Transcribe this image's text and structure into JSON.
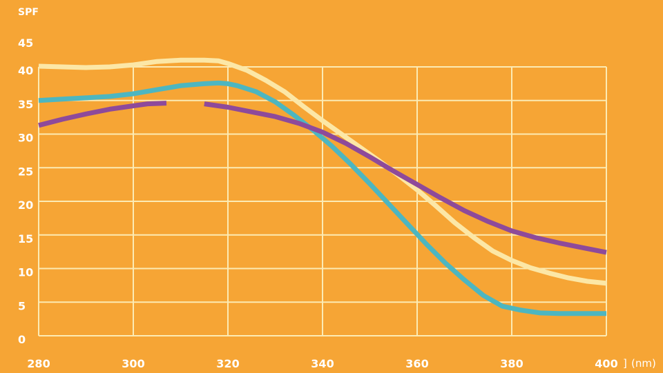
{
  "chart_data": {
    "type": "line",
    "ylabel": "SPF",
    "xlabel": "",
    "x_unit": "(nm)",
    "xlim": [
      280,
      400
    ],
    "ylim": [
      0,
      45
    ],
    "x_ticks": [
      "280",
      "300",
      "320",
      "340",
      "360",
      "380",
      "400"
    ],
    "y_ticks": [
      "0",
      "5",
      "10",
      "15",
      "20",
      "25",
      "30",
      "35",
      "40",
      "45"
    ],
    "grid": true,
    "legend": "none",
    "colors": {
      "background": "#F6A535",
      "grid": "#FCEBB4",
      "axis_text": "#FFFFFF"
    },
    "series": [
      {
        "color": "#FCE7A6",
        "points": [
          [
            280,
            40.1
          ],
          [
            285,
            40
          ],
          [
            290,
            39.9
          ],
          [
            295,
            40
          ],
          [
            300,
            40.3
          ],
          [
            305,
            40.8
          ],
          [
            310,
            41
          ],
          [
            315,
            41
          ],
          [
            318,
            40.9
          ],
          [
            320,
            40.5
          ],
          [
            324,
            39.5
          ],
          [
            328,
            38
          ],
          [
            332,
            36.3
          ],
          [
            336,
            34.1
          ],
          [
            340,
            32
          ],
          [
            344,
            30
          ],
          [
            348,
            28
          ],
          [
            352,
            26
          ],
          [
            356,
            23.9
          ],
          [
            360,
            21.7
          ],
          [
            364,
            19.3
          ],
          [
            368,
            16.8
          ],
          [
            372,
            14.6
          ],
          [
            376,
            12.6
          ],
          [
            380,
            11.2
          ],
          [
            384,
            10.1
          ],
          [
            388,
            9.3
          ],
          [
            392,
            8.6
          ],
          [
            396,
            8.1
          ],
          [
            400,
            7.8
          ]
        ]
      },
      {
        "color": "#4DB6C0",
        "points": [
          [
            280,
            35
          ],
          [
            285,
            35.2
          ],
          [
            290,
            35.4
          ],
          [
            295,
            35.6
          ],
          [
            300,
            36
          ],
          [
            305,
            36.6
          ],
          [
            310,
            37.2
          ],
          [
            315,
            37.5
          ],
          [
            318,
            37.6
          ],
          [
            320,
            37.5
          ],
          [
            322,
            37.2
          ],
          [
            326,
            36.3
          ],
          [
            330,
            34.8
          ],
          [
            334,
            32.8
          ],
          [
            338,
            30.6
          ],
          [
            342,
            28.2
          ],
          [
            346,
            25.5
          ],
          [
            350,
            22.6
          ],
          [
            354,
            19.6
          ],
          [
            358,
            16.6
          ],
          [
            362,
            13.6
          ],
          [
            366,
            10.8
          ],
          [
            370,
            8.3
          ],
          [
            374,
            6
          ],
          [
            378,
            4.4
          ],
          [
            382,
            3.8
          ],
          [
            386,
            3.4
          ],
          [
            390,
            3.3
          ],
          [
            395,
            3.3
          ],
          [
            400,
            3.3
          ]
        ]
      },
      {
        "color": "#8E4A9A",
        "segments": [
          [
            [
              280,
              31.3
            ],
            [
              285,
              32.2
            ],
            [
              290,
              33
            ],
            [
              295,
              33.7
            ],
            [
              300,
              34.2
            ],
            [
              303,
              34.5
            ],
            [
              307,
              34.6
            ]
          ],
          [
            [
              315,
              34.5
            ],
            [
              320,
              34
            ],
            [
              325,
              33.3
            ],
            [
              330,
              32.6
            ],
            [
              335,
              31.6
            ],
            [
              340,
              30.3
            ],
            [
              345,
              28.6
            ],
            [
              350,
              26.6
            ],
            [
              355,
              24.5
            ],
            [
              360,
              22.5
            ],
            [
              365,
              20.5
            ],
            [
              370,
              18.6
            ],
            [
              375,
              17
            ],
            [
              380,
              15.6
            ],
            [
              385,
              14.6
            ],
            [
              390,
              13.8
            ],
            [
              395,
              13.1
            ],
            [
              400,
              12.4
            ]
          ]
        ]
      }
    ]
  }
}
